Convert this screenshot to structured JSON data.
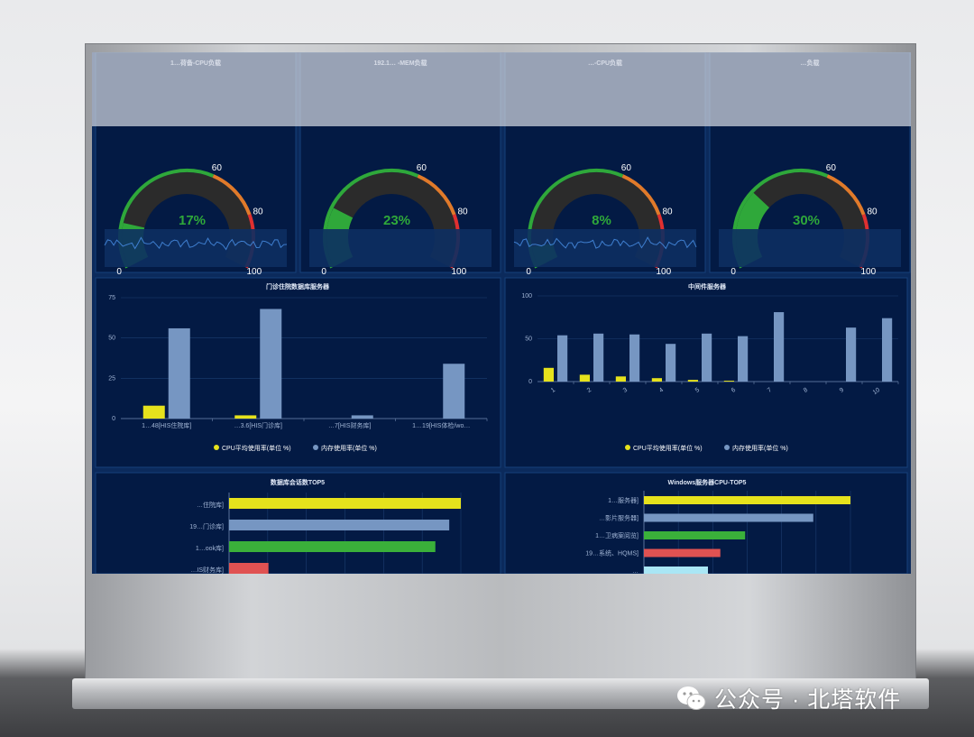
{
  "gauges": [
    {
      "title": "1…荷备-CPU负载",
      "value": "17%",
      "percent": 17,
      "spark": true
    },
    {
      "title": "192.1… -MEM负载",
      "value": "23%",
      "percent": 23,
      "spark": false
    },
    {
      "title": "…-CPU负载",
      "value": "8%",
      "percent": 8,
      "spark": true
    },
    {
      "title": "…负载",
      "value": "30%",
      "percent": 30,
      "spark": false
    }
  ],
  "gauge_scale": {
    "labels": [
      "0",
      "60",
      "80",
      "100"
    ]
  },
  "panels": {
    "outpatient": {
      "title": "门诊住院数据库服务器",
      "legend": [
        "CPU平均使用率(单位 %)",
        "内存使用率(单位 %)"
      ],
      "yticks": [
        "0",
        "25",
        "50",
        "75"
      ]
    },
    "middleware": {
      "title": "中间件服务器",
      "legend": [
        "CPU平均使用率(单位 %)",
        "内存使用率(单位 %)"
      ],
      "yticks": [
        "0",
        "50",
        "100"
      ]
    },
    "db_sessions": {
      "title": "数据库会话数TOP5"
    },
    "windows_cpu": {
      "title": "Windows服务器CPU-TOP5"
    }
  },
  "colors": {
    "cpu": "#e6e21c",
    "mem": "#7696c2",
    "green": "#3ab03a",
    "red": "#e05252",
    "cyan": "#a9e6f5",
    "gauge_green": "#2fa83a",
    "gauge_orange": "#e07a2a",
    "gauge_red": "#e03030"
  },
  "watermark": {
    "text": "公众号 · 北塔软件"
  },
  "chart_data": [
    {
      "type": "bar",
      "title": "门诊住院数据库服务器",
      "categories": [
        "1…48[HIS住院库]",
        "…3.6[HIS门诊库]",
        "…7[HIS财务库]",
        "1…19[HIS体检/wo…"
      ],
      "series": [
        {
          "name": "CPU平均使用率(单位 %)",
          "values": [
            8,
            2,
            0,
            0
          ]
        },
        {
          "name": "内存使用率(单位 %)",
          "values": [
            56,
            68,
            2,
            34
          ]
        }
      ],
      "ylim": [
        0,
        75
      ]
    },
    {
      "type": "bar",
      "title": "中间件服务器",
      "categories": [
        "1",
        "2",
        "3",
        "4",
        "5",
        "6",
        "7",
        "8",
        "9",
        "10"
      ],
      "series": [
        {
          "name": "CPU平均使用率(单位 %)",
          "values": [
            16,
            8,
            6,
            4,
            2,
            1,
            0,
            0,
            0,
            0
          ]
        },
        {
          "name": "内存使用率(单位 %)",
          "values": [
            54,
            56,
            55,
            44,
            56,
            53,
            81,
            0,
            63,
            74
          ]
        }
      ],
      "ylim": [
        0,
        100
      ]
    },
    {
      "type": "bar",
      "title": "数据库会话数TOP5",
      "categories": [
        "…住院库]",
        "19…门诊库]",
        "1…ook库]",
        "…IS财务库]"
      ],
      "values": [
        100,
        95,
        89,
        17
      ],
      "colors": [
        "#e6e21c",
        "#7696c2",
        "#3ab03a",
        "#e05252"
      ]
    },
    {
      "type": "bar",
      "title": "Windows服务器CPU-TOP5",
      "categories": [
        "1…服务器]",
        "…影片服务器]",
        "1…卫病案阅览]",
        "19…系统、HQMS]",
        "…"
      ],
      "values": [
        100,
        82,
        49,
        37,
        31
      ],
      "colors": [
        "#e6e21c",
        "#7696c2",
        "#3ab03a",
        "#e05252",
        "#a9e6f5"
      ]
    }
  ]
}
